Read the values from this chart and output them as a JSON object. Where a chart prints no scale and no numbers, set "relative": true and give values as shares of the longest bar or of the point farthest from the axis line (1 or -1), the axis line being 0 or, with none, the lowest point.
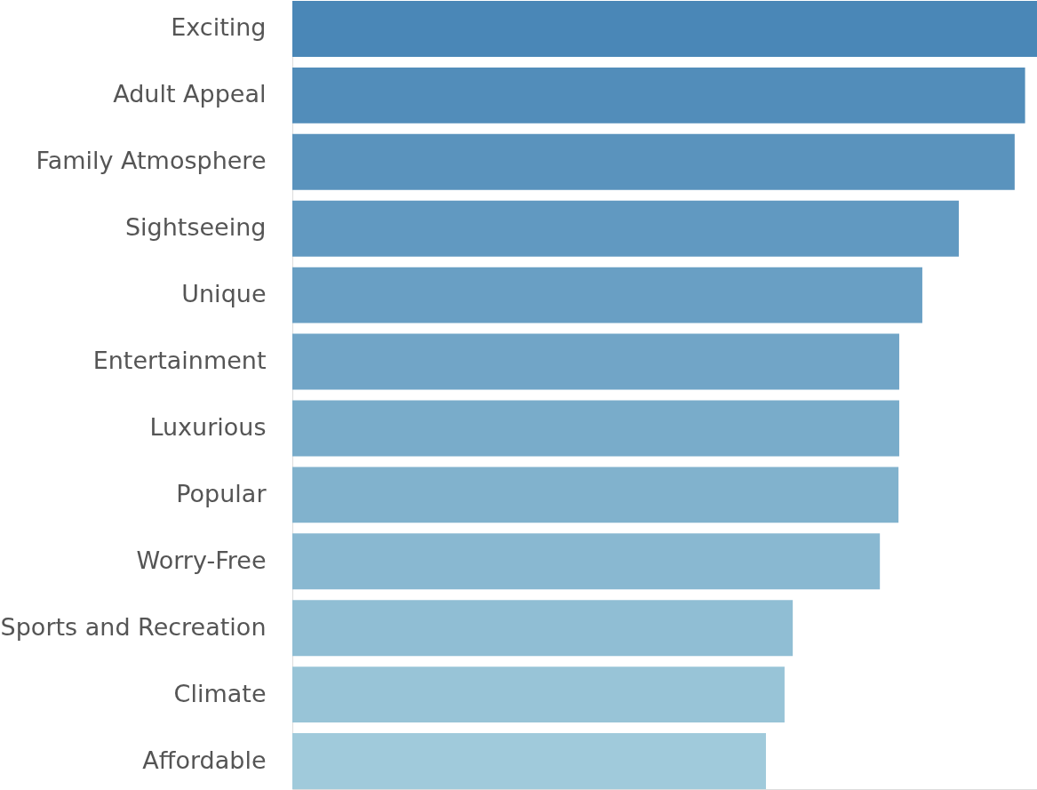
{
  "chart_data": {
    "type": "bar",
    "orientation": "horizontal",
    "relative": true,
    "categories": [
      "Exciting",
      "Adult Appeal",
      "Family Atmosphere",
      "Sightseeing",
      "Unique",
      "Entertainment",
      "Luxurious",
      "Popular",
      "Worry-Free",
      "Sports and Recreation",
      "Climate",
      "Affordable"
    ],
    "values": [
      1.0,
      0.984,
      0.97,
      0.895,
      0.846,
      0.815,
      0.815,
      0.814,
      0.789,
      0.672,
      0.661,
      0.636
    ],
    "colors": [
      "#4a87b7",
      "#528dba",
      "#5a93bd",
      "#6199c1",
      "#699fc4",
      "#71a5c7",
      "#79acca",
      "#81b2cd",
      "#89b8d1",
      "#90bed4",
      "#98c4d7",
      "#a0cadb"
    ],
    "legend": false
  }
}
